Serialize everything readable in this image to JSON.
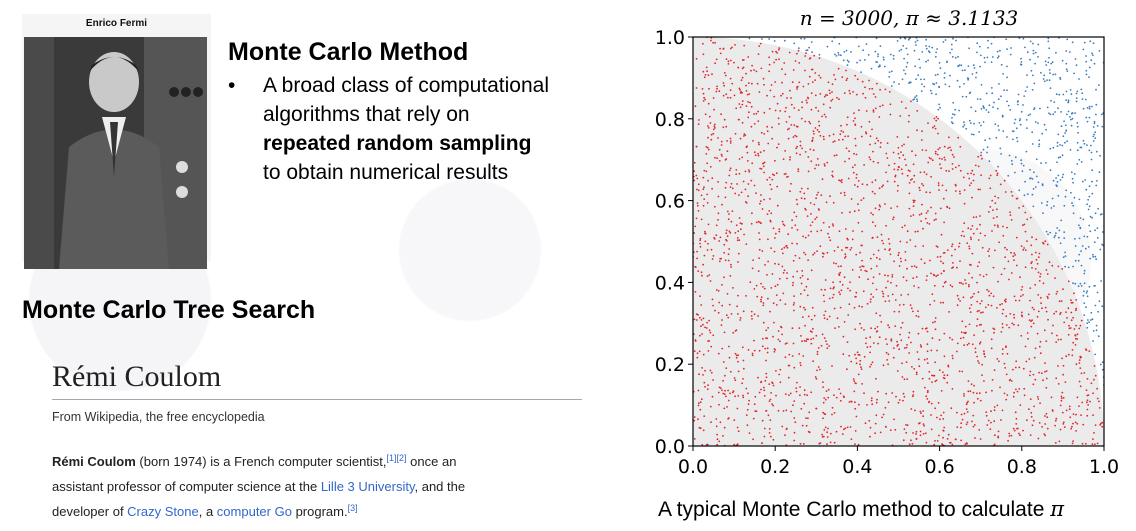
{
  "photo": {
    "caption": "Enrico Fermi"
  },
  "monte_carlo": {
    "title": "Monte Carlo Method",
    "bullet": "•",
    "lines": [
      "A broad class of computational",
      "algorithms that rely on",
      "repeated random sampling",
      "to obtain numerical results"
    ]
  },
  "mcts": {
    "title": "Monte Carlo Tree Search"
  },
  "wiki": {
    "title": "Rémi Coulom",
    "subtitle": "From Wikipedia, the free encyclopedia",
    "name": "Rémi Coulom",
    "born": " (born 1974) is a French computer scientist,",
    "ref12": "[1][2]",
    "once": " once an",
    "line2_pre": "assistant professor of computer science at the ",
    "lille": "Lille 3 University",
    "line2_post": ", and the",
    "line3_pre": "developer of ",
    "crazy": "Crazy Stone",
    "comma": ", a ",
    "go": "computer Go",
    "program": " program.",
    "ref3": "[3]"
  },
  "chart_data": {
    "type": "scatter",
    "title": "n = 3000, π ≈ 3.1133",
    "n": 3000,
    "pi_estimate": 3.1133,
    "xlim": [
      0.0,
      1.0
    ],
    "ylim": [
      0.0,
      1.0
    ],
    "x_ticks": [
      "0.0",
      "0.2",
      "0.4",
      "0.6",
      "0.8",
      "1.0"
    ],
    "y_ticks": [
      "0.0",
      "0.2",
      "0.4",
      "0.6",
      "0.8",
      "1.0"
    ],
    "inside_count": 2335,
    "outside_count": 665,
    "colors": {
      "inside": "#e3262b",
      "outside": "#3a7dbd",
      "quarter_circle": "#ebebeb"
    }
  },
  "chart_caption": {
    "text": "A typical Monte Carlo method to calculate ",
    "symbol": "π"
  }
}
